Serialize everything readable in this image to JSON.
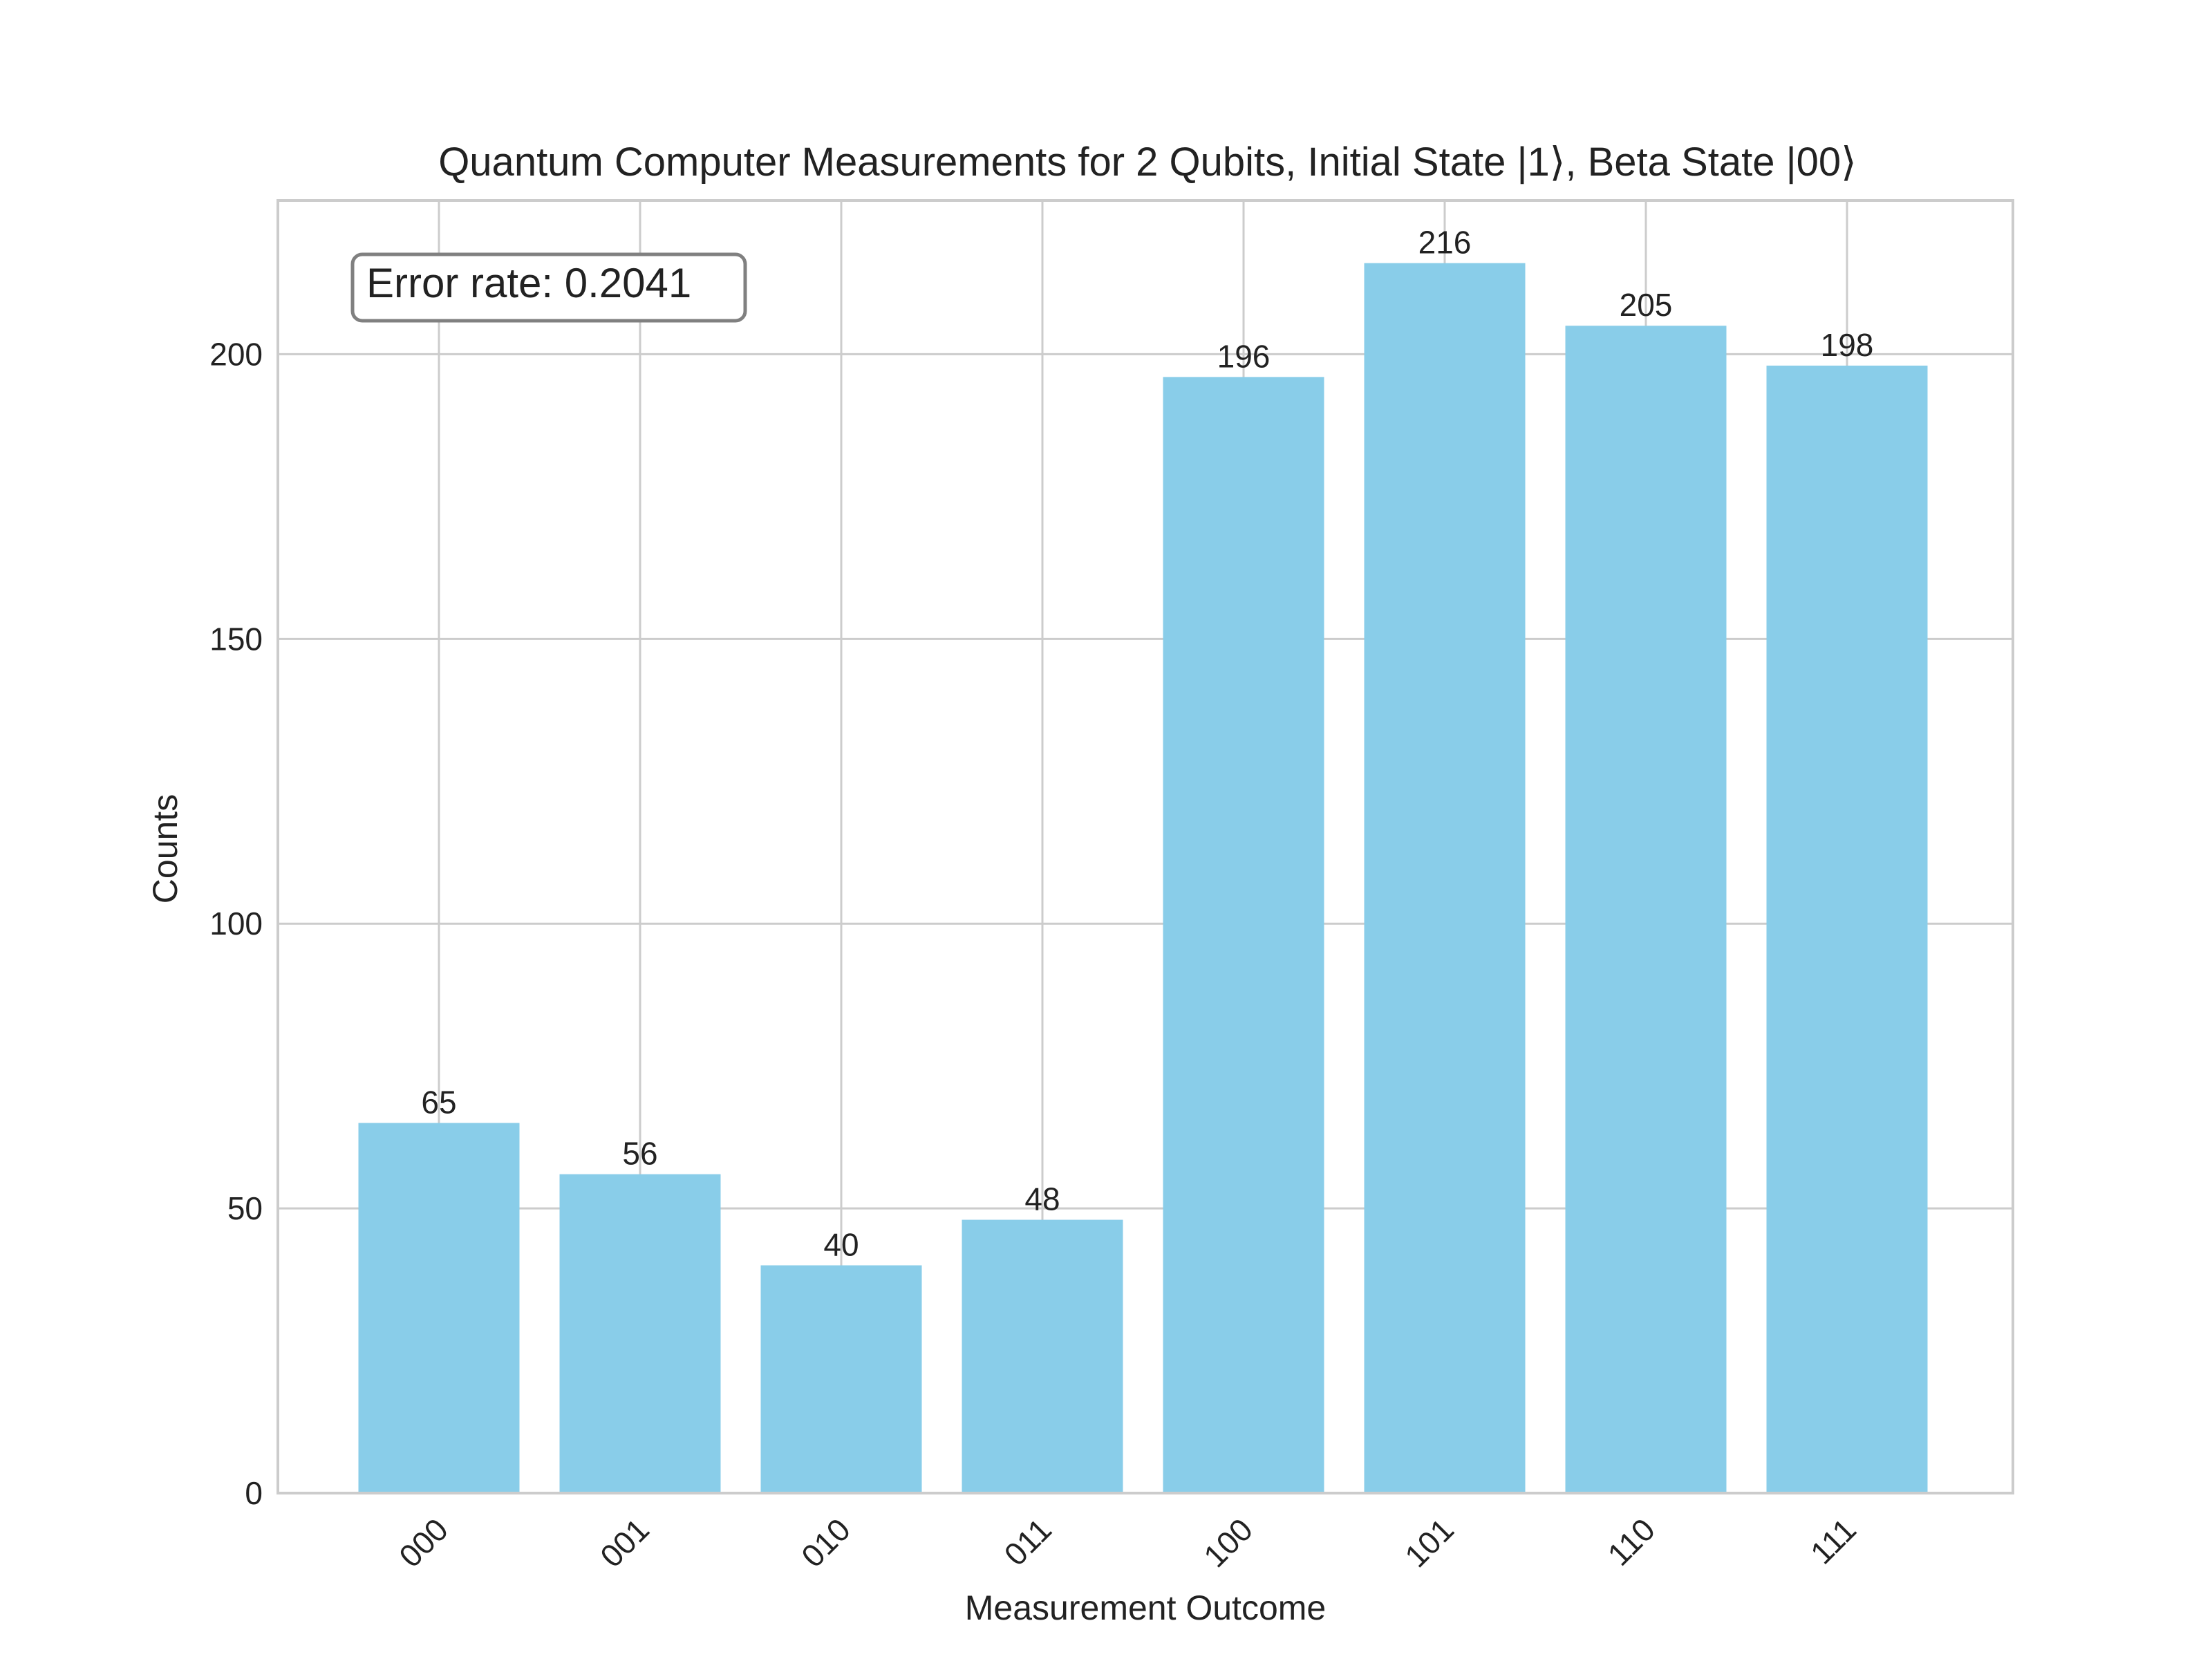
{
  "chart_data": {
    "type": "bar",
    "title": "Quantum Computer Measurements for 2 Qubits, Initial State |1⟩, Beta State |00⟩",
    "xlabel": "Measurement Outcome",
    "ylabel": "Counts",
    "categories": [
      "000",
      "001",
      "010",
      "011",
      "100",
      "101",
      "110",
      "111"
    ],
    "values": [
      65,
      56,
      40,
      48,
      196,
      216,
      205,
      198
    ],
    "ylim": [
      0,
      227
    ],
    "yticks": [
      0,
      50,
      100,
      150,
      200
    ],
    "grid": true,
    "bar_color": "#89CDE9",
    "annotation": "Error rate: 0.2041",
    "annotation_position": "top-left"
  }
}
